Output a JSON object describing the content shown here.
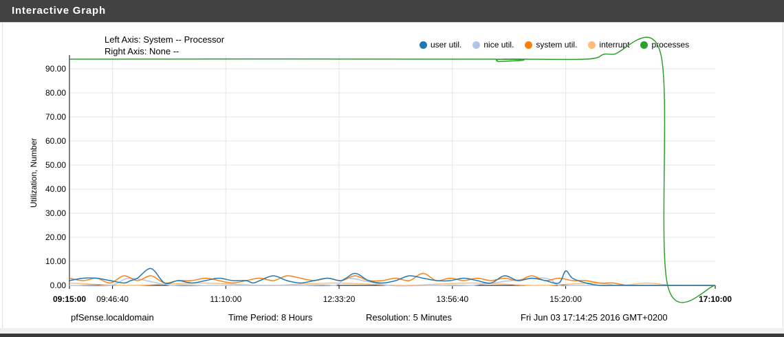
{
  "header": {
    "title": "Interactive Graph"
  },
  "axis_info": {
    "left": "Left Axis: System -- Processor",
    "right": "Right Axis: None --"
  },
  "footer": {
    "host": "pfSense.localdomain",
    "period": "Time Period: 8 Hours",
    "resolution": "Resolution: 5 Minutes",
    "timestamp": "Fri Jun 03 17:14:25 2016 GMT+0200"
  },
  "chart_data": {
    "type": "line",
    "ylabel": "Utilization, Number",
    "xlabel": "",
    "ylim": [
      0,
      94
    ],
    "y_ticks": [
      "0.00",
      "10.00",
      "20.00",
      "30.00",
      "40.00",
      "50.00",
      "60.00",
      "70.00",
      "80.00",
      "90.00"
    ],
    "y_tick_values": [
      0,
      10,
      20,
      30,
      40,
      50,
      60,
      70,
      80,
      90
    ],
    "x_range_minutes": [
      555,
      1030
    ],
    "x_ticks": [
      {
        "label": "09:15:00",
        "minutes": 555,
        "bold": true
      },
      {
        "label": "09:46:40",
        "minutes": 586.67,
        "bold": false
      },
      {
        "label": "11:10:00",
        "minutes": 670,
        "bold": false
      },
      {
        "label": "12:33:20",
        "minutes": 753.33,
        "bold": false
      },
      {
        "label": "13:56:40",
        "minutes": 836.67,
        "bold": false
      },
      {
        "label": "15:20:00",
        "minutes": 920,
        "bold": false
      },
      {
        "label": "17:10:00",
        "minutes": 1030,
        "bold": true
      }
    ],
    "grid": true,
    "legend_position": "top-right",
    "series": [
      {
        "name": "user util.",
        "color": "#1f77b4",
        "x": [
          555,
          565,
          575,
          585,
          595,
          600,
          605,
          615,
          625,
          635,
          645,
          655,
          665,
          675,
          685,
          690,
          695,
          705,
          715,
          725,
          735,
          745,
          755,
          765,
          775,
          785,
          795,
          805,
          815,
          825,
          835,
          845,
          855,
          865,
          875,
          885,
          895,
          905,
          915,
          920,
          925,
          935,
          945,
          955,
          965,
          975,
          985,
          995,
          1005,
          1015,
          1025,
          1030
        ],
        "values": [
          2,
          3,
          3,
          2,
          1,
          2,
          3,
          7,
          1,
          2,
          1,
          2,
          3,
          2,
          2,
          1,
          2,
          4,
          2,
          1,
          2,
          3,
          2,
          5,
          2,
          1,
          2,
          4,
          3,
          2,
          2,
          3,
          2,
          1,
          4,
          2,
          3,
          2,
          1,
          6,
          3,
          1,
          0,
          0,
          0,
          0,
          0,
          0,
          0,
          0,
          0,
          0
        ]
      },
      {
        "name": "nice util.",
        "color": "#aec7e8",
        "x": [
          555,
          585,
          600,
          630,
          660,
          690,
          720,
          750,
          760,
          790,
          820,
          850,
          880,
          905,
          915,
          925,
          945,
          1030
        ],
        "values": [
          0,
          0,
          3,
          0,
          0,
          0,
          0,
          0,
          3,
          0,
          0,
          0,
          2,
          3,
          0,
          0,
          0,
          0
        ]
      },
      {
        "name": "system util.",
        "color": "#ff7f0e",
        "x": [
          555,
          565,
          575,
          585,
          595,
          605,
          615,
          625,
          635,
          645,
          655,
          665,
          675,
          685,
          695,
          705,
          715,
          725,
          735,
          745,
          755,
          765,
          775,
          785,
          795,
          805,
          815,
          825,
          835,
          845,
          855,
          865,
          875,
          885,
          895,
          905,
          915,
          925,
          935,
          945,
          955,
          965,
          975,
          985,
          995,
          1030
        ],
        "values": [
          3,
          2,
          3,
          1,
          4,
          2,
          4,
          1,
          2,
          2,
          3,
          2,
          1,
          2,
          3,
          2,
          4,
          3,
          2,
          3,
          2,
          4,
          2,
          2,
          3,
          2,
          5,
          2,
          3,
          2,
          3,
          2,
          3,
          2,
          4,
          2,
          3,
          2,
          2,
          1,
          1,
          0,
          0,
          0,
          0,
          0
        ]
      },
      {
        "name": "interrupt",
        "color": "#ffbb78",
        "x": [
          555,
          600,
          650,
          700,
          750,
          800,
          850,
          900,
          940,
          960,
          980,
          1000,
          1030
        ],
        "values": [
          1,
          0,
          1,
          0,
          1,
          0,
          1,
          0,
          1,
          0,
          1,
          0,
          0
        ]
      },
      {
        "name": "processes",
        "color": "#2ca02c",
        "x": [
          555,
          865,
          870,
          875,
          935,
          948,
          955,
          990,
          995,
          1030
        ],
        "values": [
          94,
          94,
          93,
          94,
          94,
          96,
          96,
          96,
          0,
          0
        ]
      }
    ]
  }
}
